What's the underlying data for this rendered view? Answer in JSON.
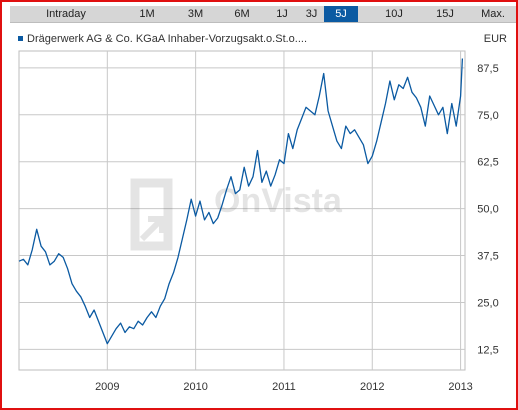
{
  "tabs": [
    {
      "label": "Intraday",
      "active": false
    },
    {
      "label": "1M",
      "active": false
    },
    {
      "label": "3M",
      "active": false
    },
    {
      "label": "6M",
      "active": false
    },
    {
      "label": "1J",
      "active": false
    },
    {
      "label": "3J",
      "active": false
    },
    {
      "label": "5J",
      "active": true
    },
    {
      "label": "10J",
      "active": false
    },
    {
      "label": "15J",
      "active": false
    },
    {
      "label": "Max.",
      "active": false
    }
  ],
  "legend": {
    "series_name": "Drägerwerk AG & Co. KGaA Inhaber-Vorzugsakt.o.St.o....",
    "currency": "EUR"
  },
  "watermark": "OnVista",
  "colors": {
    "line": "#0b5aa2",
    "grid": "#c8c8c8",
    "active_tab": "#0b5aa2",
    "border": "#e01010"
  },
  "chart_data": {
    "type": "line",
    "yaxis_side": "right",
    "ylim": [
      7,
      92
    ],
    "xlim": [
      2008.0,
      2013.05
    ],
    "yticks": [
      12.5,
      25.0,
      37.5,
      50.0,
      62.5,
      75.0,
      87.5
    ],
    "ytick_labels": [
      "12,5",
      "25,0",
      "37,5",
      "50,0",
      "62,5",
      "75,0",
      "87,5"
    ],
    "xticks": [
      2009,
      2010,
      2011,
      2012,
      2013
    ],
    "xtick_labels": [
      "2009",
      "2010",
      "2011",
      "2012",
      "2013"
    ],
    "grid": true,
    "series": [
      {
        "x": [
          2008.0,
          2008.05,
          2008.1,
          2008.15,
          2008.2,
          2008.25,
          2008.3,
          2008.35,
          2008.4,
          2008.45,
          2008.5,
          2008.55,
          2008.6,
          2008.65,
          2008.7,
          2008.75,
          2008.8,
          2008.85,
          2008.9,
          2008.95,
          2009.0,
          2009.05,
          2009.1,
          2009.15,
          2009.2,
          2009.25,
          2009.3,
          2009.35,
          2009.4,
          2009.45,
          2009.5,
          2009.55,
          2009.6,
          2009.65,
          2009.7,
          2009.75,
          2009.8,
          2009.85,
          2009.9,
          2009.95,
          2010.0,
          2010.05,
          2010.1,
          2010.15,
          2010.2,
          2010.25,
          2010.3,
          2010.35,
          2010.4,
          2010.45,
          2010.5,
          2010.55,
          2010.6,
          2010.65,
          2010.7,
          2010.75,
          2010.8,
          2010.85,
          2010.9,
          2010.95,
          2011.0,
          2011.05,
          2011.1,
          2011.15,
          2011.2,
          2011.25,
          2011.3,
          2011.35,
          2011.4,
          2011.45,
          2011.5,
          2011.55,
          2011.6,
          2011.65,
          2011.7,
          2011.75,
          2011.8,
          2011.85,
          2011.9,
          2011.95,
          2012.0,
          2012.05,
          2012.1,
          2012.15,
          2012.2,
          2012.25,
          2012.3,
          2012.35,
          2012.4,
          2012.45,
          2012.5,
          2012.55,
          2012.6,
          2012.65,
          2012.7,
          2012.75,
          2012.8,
          2012.85,
          2012.9,
          2012.95,
          2013.0,
          2013.02
        ],
        "y": [
          36,
          36.5,
          35,
          39,
          44.5,
          40,
          38.5,
          35,
          36,
          38,
          37,
          34,
          30,
          28,
          26.5,
          24,
          21,
          23,
          20,
          17,
          14,
          16,
          18,
          19.5,
          17,
          18.5,
          18,
          20,
          19,
          21,
          22.5,
          21,
          24,
          26,
          30,
          33,
          37,
          42,
          47,
          52.5,
          48,
          52,
          47,
          49,
          46,
          47.5,
          51,
          55,
          58.5,
          54,
          55,
          61,
          56,
          58.5,
          65.5,
          57,
          60,
          56,
          59,
          63,
          62,
          70,
          66,
          71,
          74,
          77,
          76,
          75,
          80,
          86,
          76,
          72,
          68,
          66,
          72,
          70,
          71,
          69,
          67,
          62,
          64,
          68,
          73,
          78,
          84,
          79,
          83,
          82,
          85,
          81,
          79.5,
          77,
          72,
          80,
          77.5,
          75,
          77,
          70,
          78,
          72,
          80,
          90
        ]
      }
    ]
  }
}
